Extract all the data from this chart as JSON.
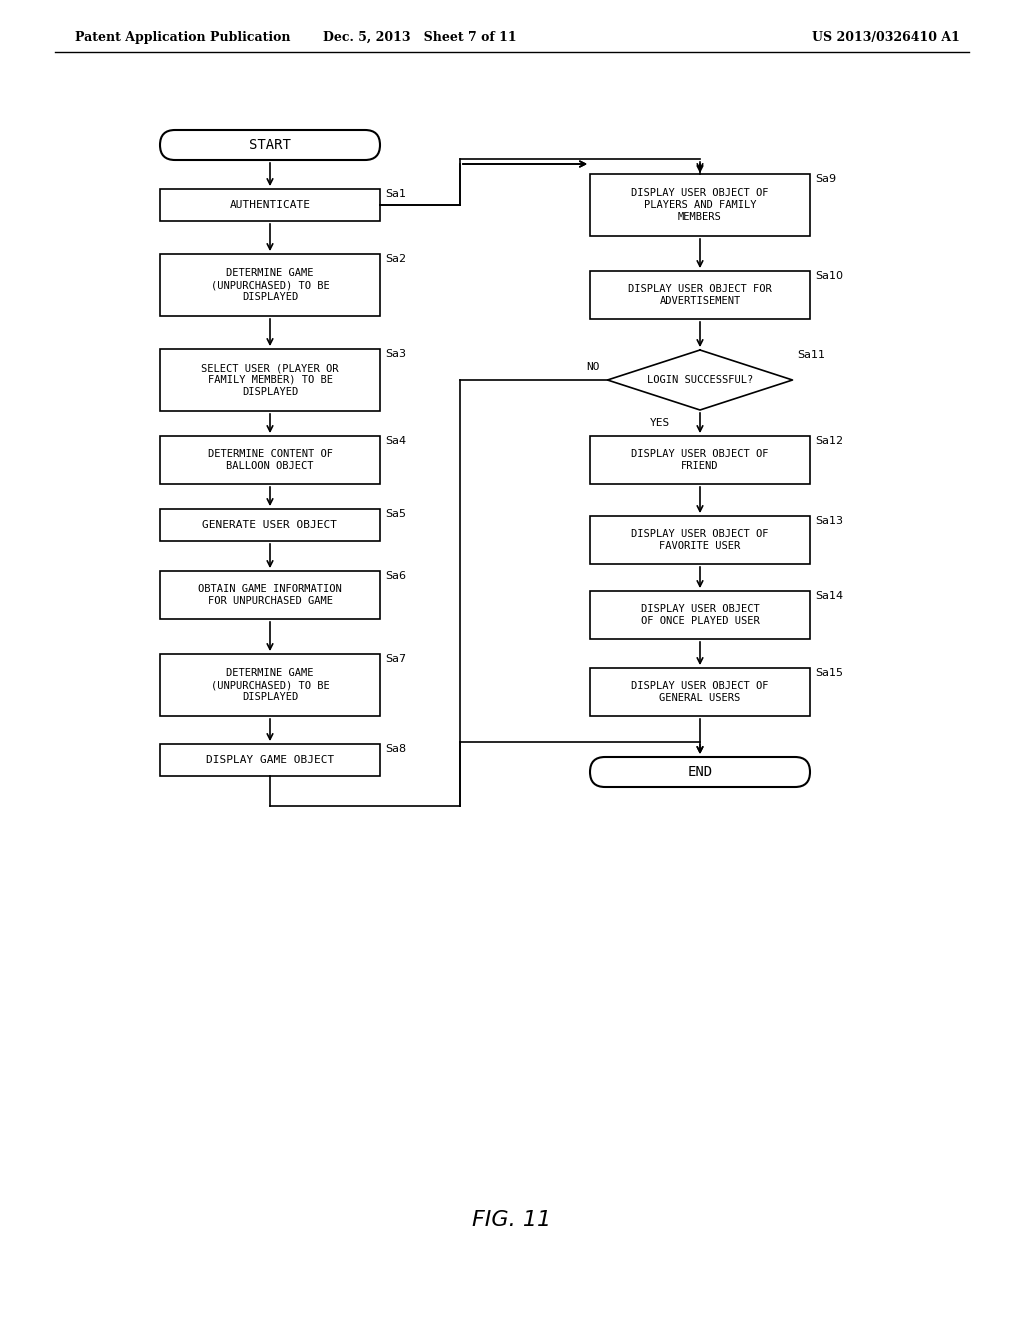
{
  "header_left": "Patent Application Publication",
  "header_center": "Dec. 5, 2013   Sheet 7 of 11",
  "header_right": "US 2013/0326410 A1",
  "figure_label": "FIG. 11",
  "bg": "#ffffff"
}
